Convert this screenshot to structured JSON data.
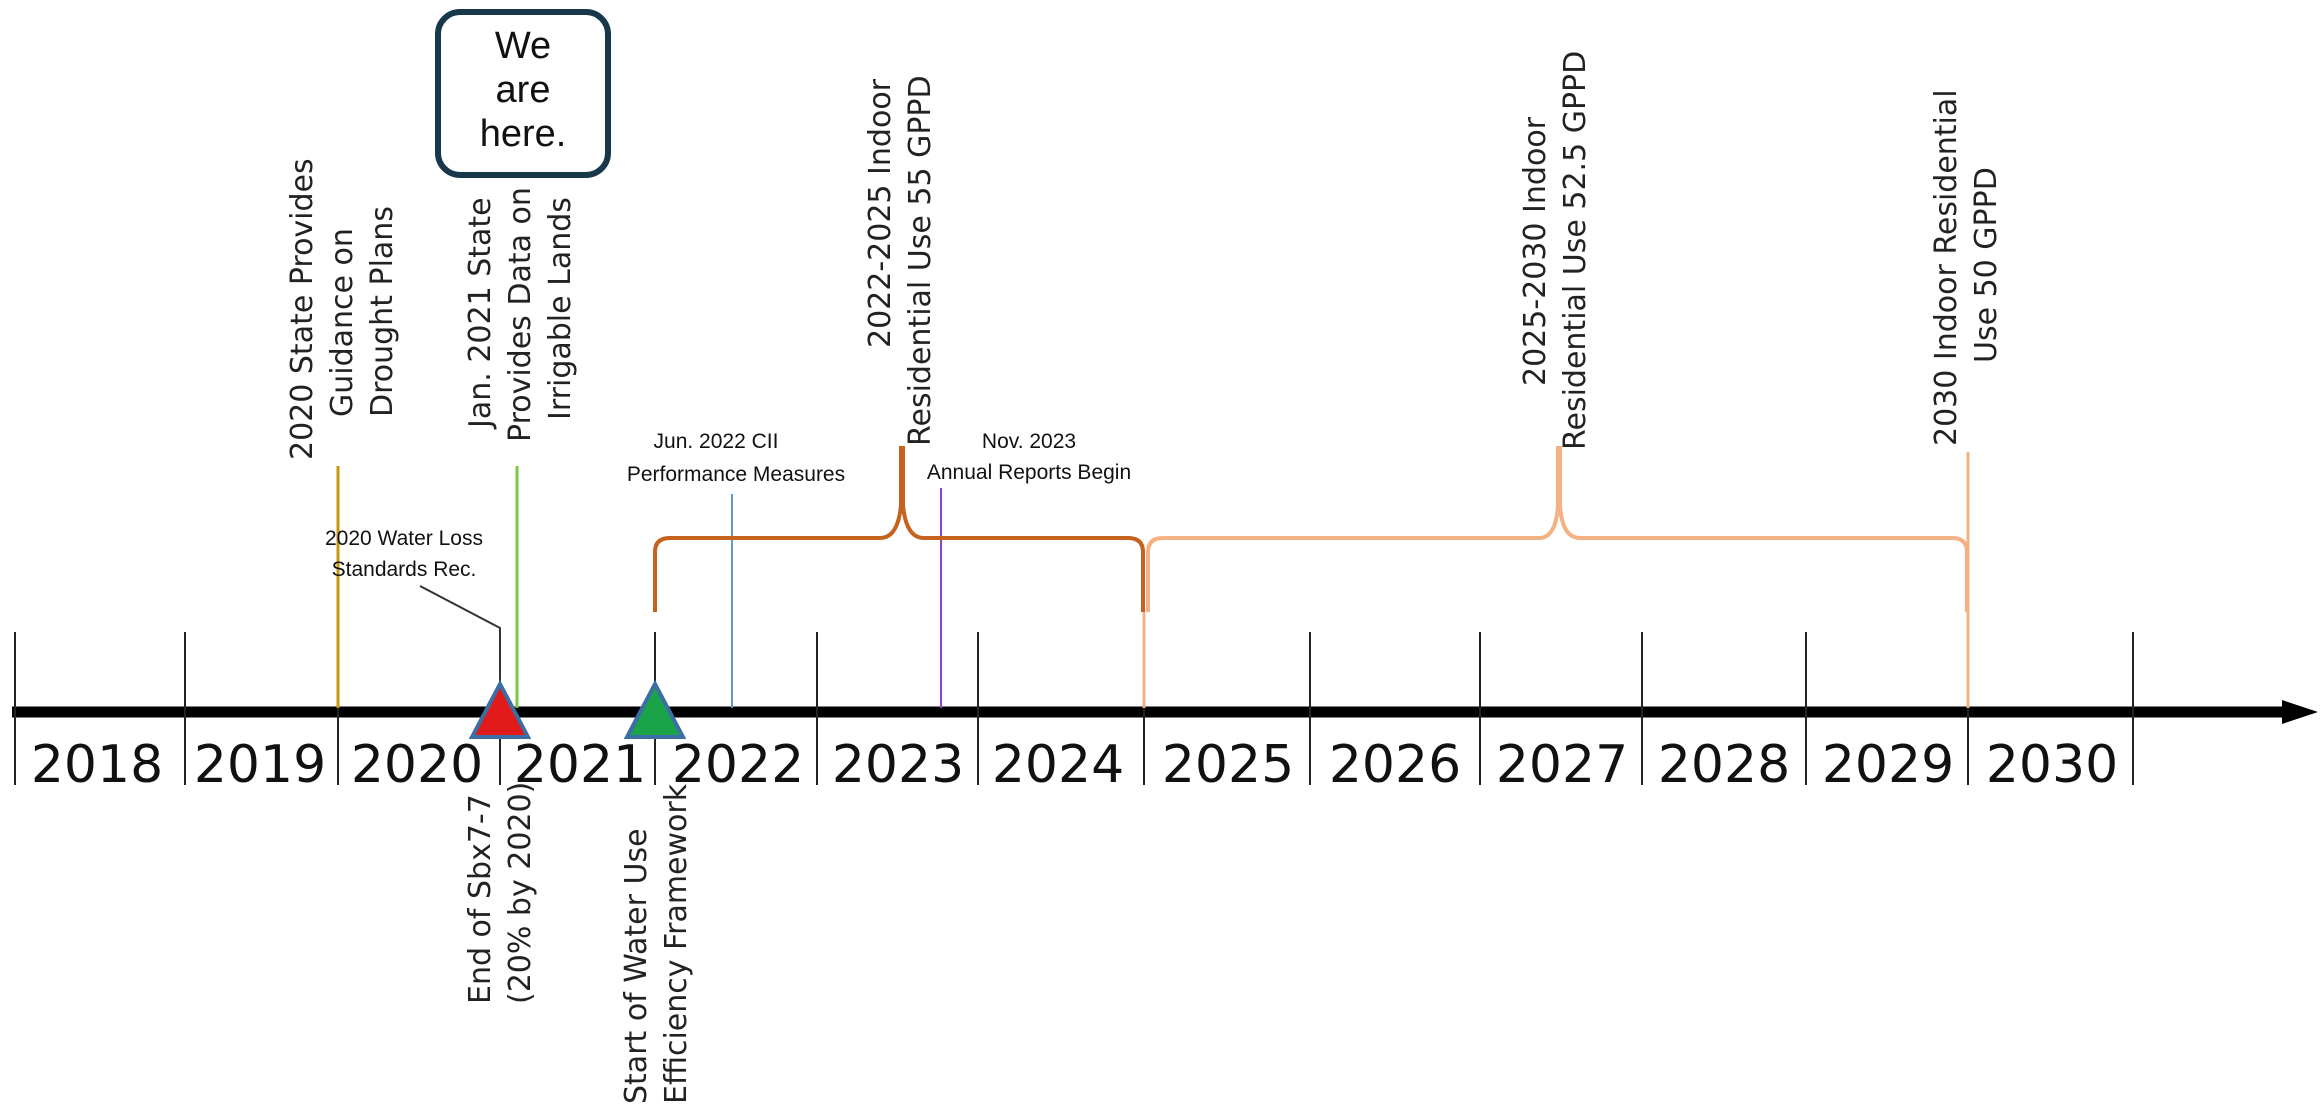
{
  "years": [
    "2018",
    "2019",
    "2020",
    "2021",
    "2022",
    "2023",
    "2024",
    "2025",
    "2026",
    "2027",
    "2028",
    "2029",
    "2030"
  ],
  "callout": {
    "lines": [
      "We",
      "are",
      "here."
    ]
  },
  "events_above": [
    {
      "lines": [
        "2020 State Provides",
        "Guidance on",
        "Drought Plans"
      ],
      "color": "#c9960c"
    },
    {
      "lines": [
        "Jan. 2021 State",
        "Provides Data on",
        "Irrigable Lands"
      ],
      "color": "#7cc548"
    },
    {
      "lines": [
        "2022-2025 Indoor",
        "Residential Use 55 GPPD"
      ],
      "color": "#c4621e"
    },
    {
      "lines": [
        "2025-2030 Indoor",
        "Residential Use 52.5 GPPD"
      ],
      "color": "#f4b183"
    },
    {
      "lines": [
        "2030 Indoor Residential",
        "Use 50 GPPD"
      ],
      "color": "#f4b183"
    }
  ],
  "events_small": [
    {
      "lines": [
        "2020 Water Loss",
        "Standards Rec."
      ],
      "color": "#333333"
    },
    {
      "lines": [
        "Jun. 2022 CII",
        "Performance Measures"
      ],
      "color": "#5b9bd5"
    },
    {
      "lines": [
        "Nov. 2023",
        "Annual Reports Begin"
      ],
      "color": "#8e44cc"
    }
  ],
  "events_below": [
    {
      "lines": [
        "End of Sbx7-7",
        "(20% by 2020)"
      ],
      "marker_color": "#e11b1b"
    },
    {
      "lines": [
        "Start of Water Use",
        "Efficiency Framework"
      ],
      "marker_color": "#1ba34a"
    }
  ],
  "colors": {
    "axis": "#000000",
    "callout_border": "#17374a",
    "triangle_border": "#3a6ea5"
  }
}
